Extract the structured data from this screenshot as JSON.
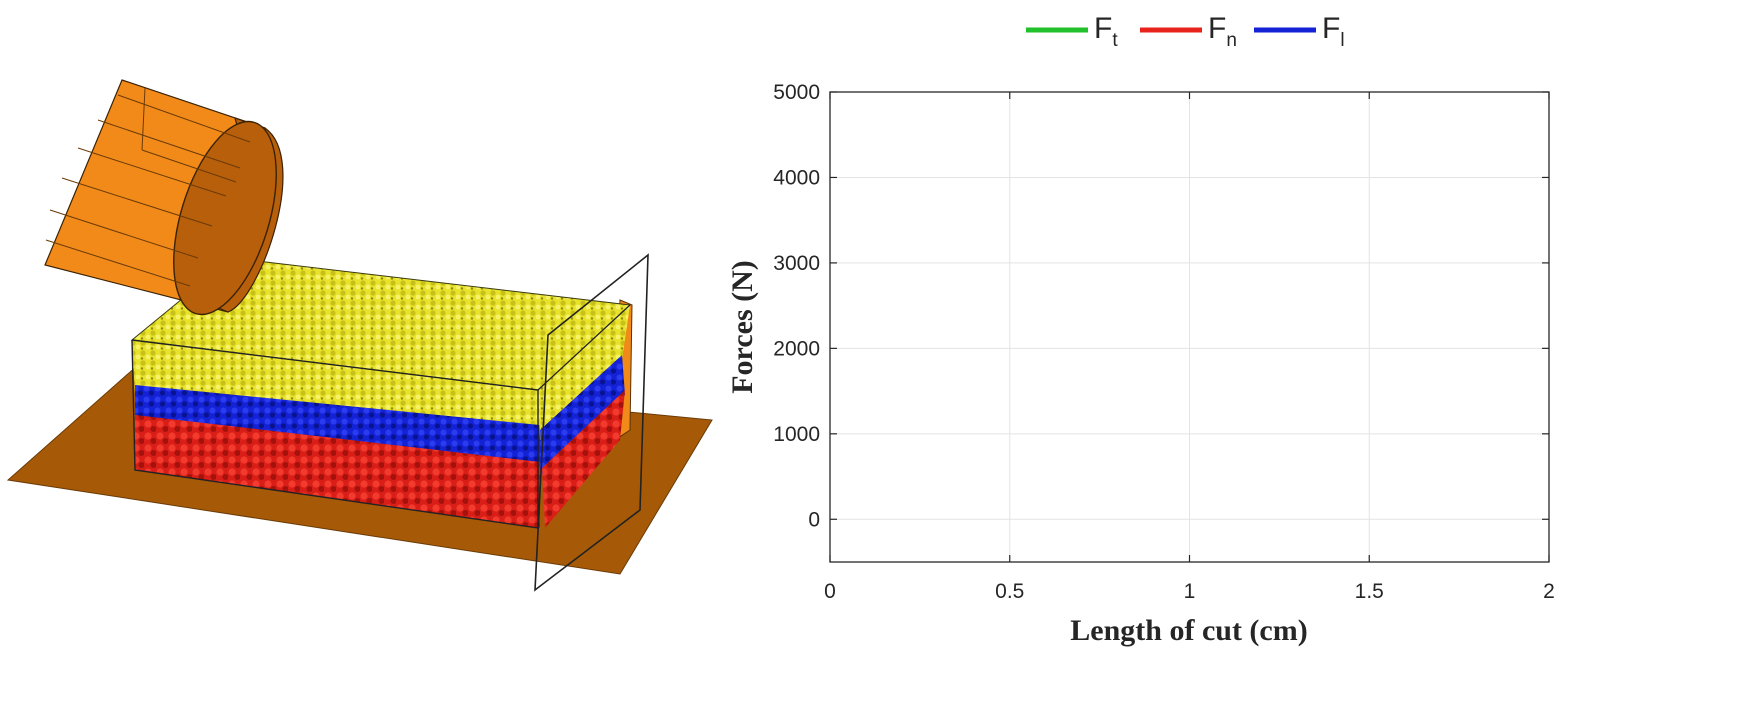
{
  "colors": {
    "ground": "#a65a08",
    "cylinder": "#f28a1a",
    "cylinder_end": "#b85f0c",
    "yellow_layer": "#e8e22a",
    "blue_layer": "#1222d4",
    "red_layer": "#e8231c",
    "grid": "#e3e3e3",
    "axes": "#262626"
  },
  "chart_data": {
    "type": "line",
    "xlabel": "Length of cut (cm)",
    "ylabel": "Forces (N)",
    "xlim": [
      0,
      2
    ],
    "ylim": [
      -500,
      5000
    ],
    "xticks": [
      0,
      0.5,
      1,
      1.5,
      2
    ],
    "xtick_labels": [
      "0",
      "0.5",
      "1",
      "1.5",
      "2"
    ],
    "yticks": [
      0,
      1000,
      2000,
      3000,
      4000,
      5000
    ],
    "ytick_labels": [
      "0",
      "1000",
      "2000",
      "3000",
      "4000",
      "5000"
    ],
    "grid": true,
    "legend_position": "top",
    "series": [
      {
        "name_main": "F",
        "name_sub": "t",
        "color": "#22c02a",
        "x": [],
        "y": []
      },
      {
        "name_main": "F",
        "name_sub": "n",
        "color": "#e8231c",
        "x": [],
        "y": []
      },
      {
        "name_main": "F",
        "name_sub": "l",
        "color": "#1222d4",
        "x": [],
        "y": []
      }
    ]
  }
}
